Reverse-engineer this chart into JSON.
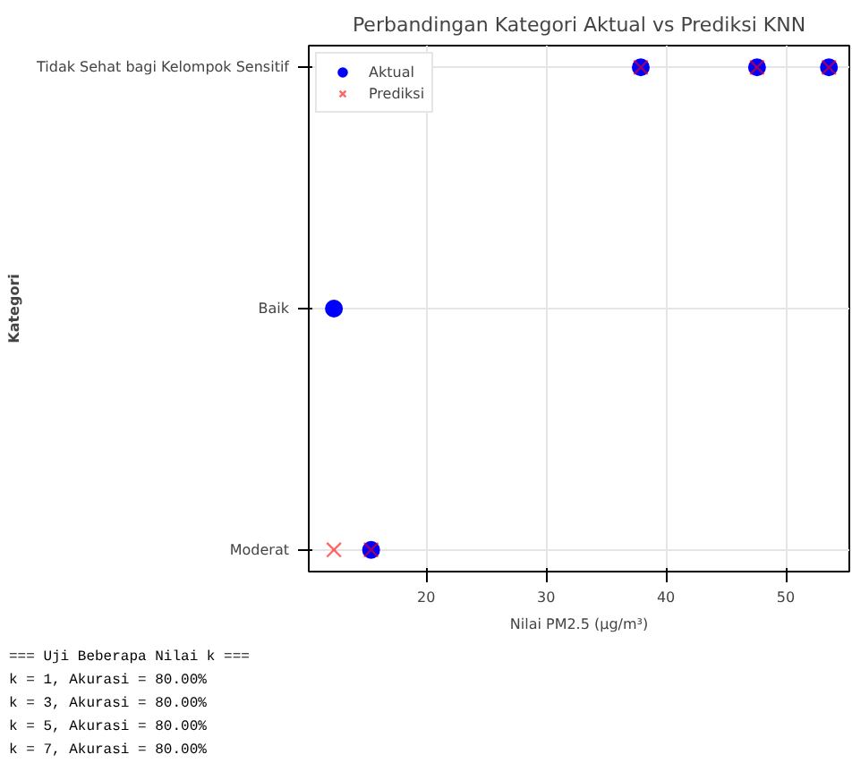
{
  "chart_data": {
    "type": "scatter",
    "orientation": "horizontal",
    "title": "Perbandingan Kategori Aktual vs Prediksi KNN",
    "xlabel": "Nilai PM2.5 (µg/m³)",
    "ylabel": "Kategori",
    "categories": [
      "Tidak Sehat bagi Kelompok Sensitif",
      "Baik",
      "Moderat"
    ],
    "series": [
      {
        "name": "Aktual",
        "color": "#0000ff",
        "marker": "circle",
        "x": [
          "Baik",
          "Moderat",
          "Tidak Sehat bagi Kelompok Sensitif",
          "Tidak Sehat bagi Kelompok Sensitif",
          "Tidak Sehat bagi Kelompok Sensitif"
        ],
        "values": [
          12.3,
          15.4,
          37.9,
          47.6,
          53.6
        ]
      },
      {
        "name": "Prediksi",
        "color": "#ff0000",
        "marker": "cross",
        "x": [
          "Moderat",
          "Moderat",
          "Tidak Sehat bagi Kelompok Sensitif",
          "Tidak Sehat bagi Kelompok Sensitif",
          "Tidak Sehat bagi Kelompok Sensitif"
        ],
        "values": [
          12.3,
          15.4,
          37.9,
          47.6,
          53.6
        ]
      }
    ],
    "xlim": [
      10.2,
      55.3
    ],
    "xticks": [
      20,
      30,
      40,
      50
    ],
    "grid": true,
    "legend": "top left",
    "annotations": [
      "=== Uji Beberapa Nilai k ===",
      "k = 1, Akurasi = 80.00%",
      "k = 3, Akurasi = 80.00%",
      "k = 5, Akurasi = 80.00%",
      "k = 7, Akurasi = 80.00%"
    ]
  }
}
